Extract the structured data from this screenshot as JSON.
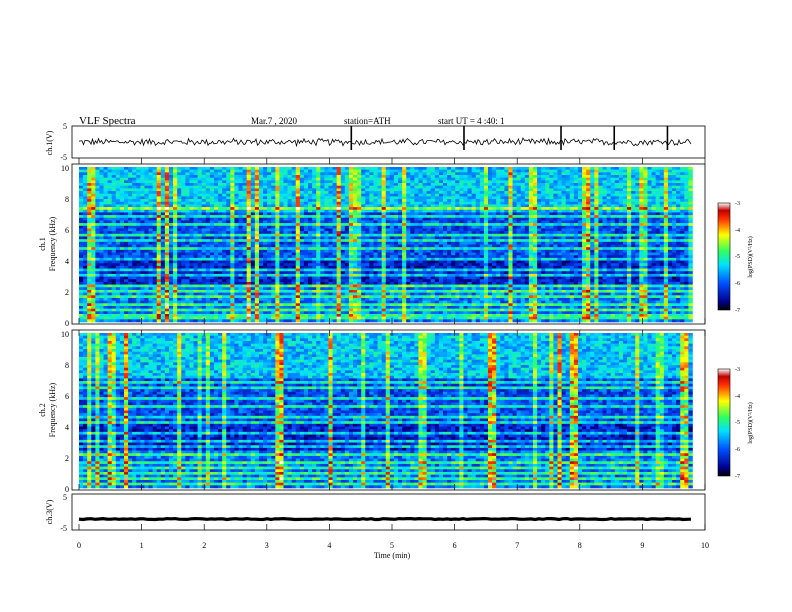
{
  "header": {
    "title": "VLF  Spectra",
    "date": "Mar.7  , 2020",
    "station": "station=ATH",
    "start": "start  UT  =   4  :40: 1"
  },
  "chart_data": {
    "type": "heatmap",
    "title": "VLF  Spectra",
    "xlabel": "Time  (min)",
    "xlim": [
      0,
      10
    ],
    "x_ticks": [
      "0",
      "1",
      "2",
      "3",
      "4",
      "5",
      "6",
      "7",
      "8",
      "9",
      "10"
    ],
    "data_end_min": 9.8,
    "panels": [
      {
        "id": "ch1-waveform",
        "type": "line",
        "ylabel": "ch.1(V)",
        "ylim": [
          -5,
          5
        ],
        "y_ticks": [
          "5",
          "-5"
        ],
        "baseline": 0,
        "noise_amplitude": 1.0,
        "spike_times_min": [
          4.35,
          6.15,
          7.7,
          8.55,
          9.4
        ]
      },
      {
        "id": "ch1-spectrogram",
        "type": "heatmap",
        "ylabel": "ch.1\nFrequency  (kHz)",
        "ylim": [
          0,
          10
        ],
        "y_ticks": [
          "0",
          "2",
          "4",
          "6",
          "8",
          "10"
        ],
        "z_range": [
          -7,
          -3
        ],
        "colorbar_label": "log(PSD)(V²/Hz)",
        "colorbar_ticks": [
          "-3",
          "-4",
          "-5",
          "-6",
          "-7"
        ],
        "horizontal_lines_khz": [
          0.3,
          0.5,
          0.8,
          1.2,
          1.6,
          2.0,
          2.3,
          3.0,
          3.4,
          4.0,
          4.8,
          5.2,
          5.6,
          6.3,
          6.8,
          7.3
        ]
      },
      {
        "id": "ch2-spectrogram",
        "type": "heatmap",
        "ylabel": "ch.2\nFrequency  (kHz)",
        "ylim": [
          0,
          10
        ],
        "y_ticks": [
          "0",
          "2",
          "4",
          "6",
          "8",
          "10"
        ],
        "z_range": [
          -7,
          -3
        ],
        "colorbar_label": "log(PSD)(V²/Hz)",
        "colorbar_ticks": [
          "-3",
          "-4",
          "-5",
          "-6",
          "-7"
        ],
        "horizontal_lines_khz": [
          0.3,
          0.6,
          0.9,
          1.3,
          1.7,
          2.1,
          2.6,
          3.0,
          3.6,
          4.2,
          4.6,
          5.3,
          5.8,
          6.4,
          6.8
        ]
      },
      {
        "id": "ch3-waveform",
        "type": "line",
        "ylabel": "ch.3(V)",
        "ylim": [
          -5,
          5
        ],
        "y_ticks": [
          "5",
          "-5"
        ],
        "baseline": -2.2,
        "noise_amplitude": 0.15
      }
    ]
  }
}
